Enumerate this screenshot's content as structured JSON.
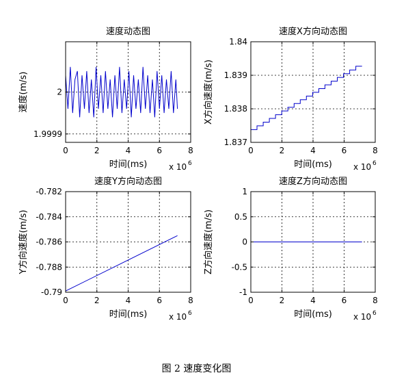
{
  "caption": "图 2  速度变化图",
  "chart_data": [
    {
      "type": "line",
      "title": "速度动态图",
      "xlabel": "时间(ms)",
      "ylabel": "速度(m/s)",
      "x_exponent": "x 10",
      "x_exponent_power": "6",
      "xlim": [
        0,
        8
      ],
      "ylim": [
        1.99988,
        2.00012
      ],
      "xticks": [
        "0",
        "2",
        "4",
        "6",
        "8"
      ],
      "yticks": [
        {
          "v": 1.9999,
          "label": "1.9999"
        },
        {
          "v": 2.0,
          "label": "2"
        }
      ],
      "grid": true,
      "color": "#0000cc",
      "series": [
        {
          "x": [
            0,
            0.15,
            0.3,
            0.45,
            0.6,
            0.75,
            0.9,
            1.05,
            1.2,
            1.35,
            1.5,
            1.65,
            1.8,
            1.95,
            2.1,
            2.25,
            2.4,
            2.55,
            2.7,
            2.85,
            3.0,
            3.15,
            3.3,
            3.45,
            3.6,
            3.75,
            3.9,
            4.05,
            4.2,
            4.35,
            4.5,
            4.65,
            4.8,
            4.95,
            5.1,
            5.25,
            5.4,
            5.55,
            5.7,
            5.85,
            6.0,
            6.15,
            6.3,
            6.45,
            6.6,
            6.75,
            6.9,
            7.05,
            7.15
          ],
          "values": [
            2.00004,
            1.99996,
            2.00006,
            1.99995,
            2.00003,
            2.00005,
            1.99994,
            2.00004,
            1.99996,
            2.00005,
            1.99995,
            2.00003,
            1.99994,
            2.00006,
            1.99996,
            2.00004,
            1.99995,
            2.00005,
            1.99996,
            2.00003,
            1.99994,
            2.00004,
            1.99996,
            2.00006,
            1.99995,
            2.00003,
            1.99996,
            2.00005,
            1.99994,
            2.00004,
            1.99996,
            2.00003,
            1.99995,
            2.00006,
            1.99996,
            2.00004,
            1.99995,
            2.00003,
            1.99994,
            2.00005,
            1.99996,
            2.00004,
            1.99995,
            2.00003,
            1.99996,
            2.00005,
            1.99995,
            2.00003,
            1.99996
          ]
        }
      ]
    },
    {
      "type": "line",
      "title": "速度X方向动态图",
      "xlabel": "时间(ms)",
      "ylabel": "X方向速度(m/s)",
      "x_exponent": "x 10",
      "x_exponent_power": "6",
      "xlim": [
        0,
        8
      ],
      "ylim": [
        1.837,
        1.84
      ],
      "xticks": [
        "0",
        "2",
        "4",
        "6",
        "8"
      ],
      "yticks": [
        {
          "v": 1.837,
          "label": "1.837"
        },
        {
          "v": 1.838,
          "label": "1.838"
        },
        {
          "v": 1.839,
          "label": "1.839"
        },
        {
          "v": 1.84,
          "label": "1.84"
        }
      ],
      "grid": true,
      "color": "#0000cc",
      "series": [
        {
          "x": [
            0,
            7.15
          ],
          "values": [
            1.83738,
            1.83927
          ],
          "stepped": true
        }
      ]
    },
    {
      "type": "line",
      "title": "速度Y方向动态图",
      "xlabel": "时间(ms)",
      "ylabel": "Y方向速度(m/s)",
      "x_exponent": "x 10",
      "x_exponent_power": "6",
      "xlim": [
        0,
        8
      ],
      "ylim": [
        -0.79,
        -0.782
      ],
      "xticks": [
        "0",
        "2",
        "4",
        "6",
        "8"
      ],
      "yticks": [
        {
          "v": -0.79,
          "label": "-0.79"
        },
        {
          "v": -0.788,
          "label": "-0.788"
        },
        {
          "v": -0.786,
          "label": "-0.786"
        },
        {
          "v": -0.784,
          "label": "-0.784"
        },
        {
          "v": -0.782,
          "label": "-0.782"
        }
      ],
      "grid": true,
      "color": "#0000cc",
      "series": [
        {
          "x": [
            0,
            7.15
          ],
          "values": [
            -0.7899,
            -0.7855
          ]
        }
      ]
    },
    {
      "type": "line",
      "title": "速度Z方向动态图",
      "xlabel": "时间(ms)",
      "ylabel": "Z方向速度(m/s)",
      "x_exponent": "x 10",
      "x_exponent_power": "6",
      "xlim": [
        0,
        8
      ],
      "ylim": [
        -1,
        1
      ],
      "xticks": [
        "0",
        "2",
        "4",
        "6",
        "8"
      ],
      "yticks": [
        {
          "v": -1,
          "label": "-1"
        },
        {
          "v": -0.5,
          "label": "-0.5"
        },
        {
          "v": 0,
          "label": "0"
        },
        {
          "v": 0.5,
          "label": "0.5"
        },
        {
          "v": 1,
          "label": "1"
        }
      ],
      "grid": true,
      "color": "#0000cc",
      "series": [
        {
          "x": [
            0,
            7.15
          ],
          "values": [
            0,
            0
          ]
        }
      ]
    }
  ]
}
